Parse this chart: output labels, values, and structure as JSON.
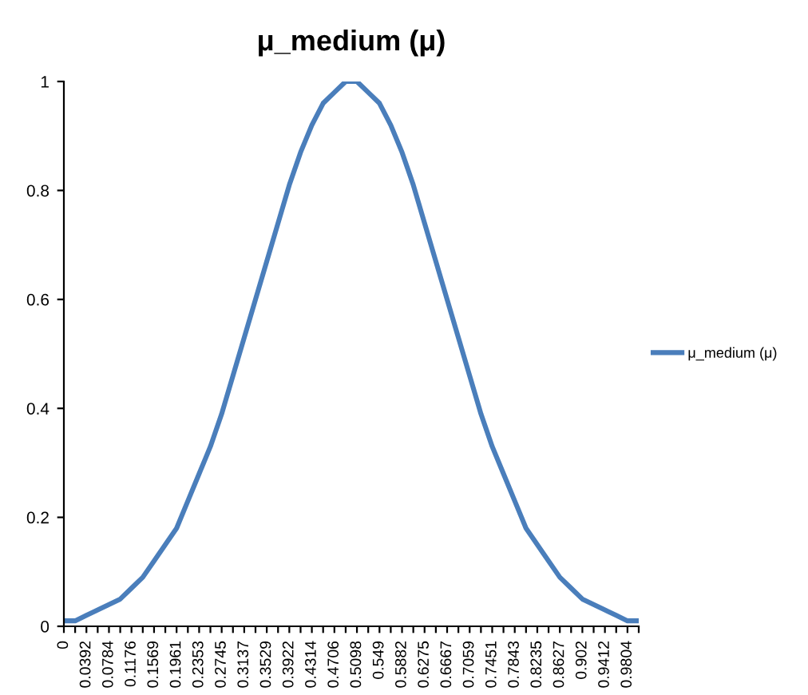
{
  "chart_data": {
    "type": "line",
    "title": "μ_medium (μ)",
    "categories": [
      "0",
      null,
      "0.0392",
      null,
      "0.0784",
      null,
      "0.1176",
      null,
      "0.1569",
      null,
      "0.1961",
      null,
      "0.2353",
      null,
      "0.2745",
      null,
      "0.3137",
      null,
      "0.3529",
      null,
      "0.3922",
      null,
      "0.4314",
      null,
      "0.4706",
      null,
      "0.5098",
      null,
      "0.549",
      null,
      "0.5882",
      null,
      "0.6275",
      null,
      "0.6667",
      null,
      "0.7059",
      null,
      "0.7451",
      null,
      "0.7843",
      null,
      "0.8235",
      null,
      "0.8627",
      null,
      "0.902",
      null,
      "0.9412",
      null,
      "0.9804",
      null
    ],
    "series": [
      {
        "name": "μ_medium (μ)",
        "color": "#4a7ebb",
        "values": [
          0.01,
          0.01,
          0.02,
          0.03,
          0.04,
          0.05,
          0.07,
          0.09,
          0.12,
          0.15,
          0.18,
          0.23,
          0.28,
          0.33,
          0.39,
          0.46,
          0.53,
          0.6,
          0.67,
          0.74,
          0.81,
          0.87,
          0.92,
          0.96,
          0.98,
          1.0,
          1.0,
          0.98,
          0.96,
          0.92,
          0.87,
          0.81,
          0.74,
          0.67,
          0.6,
          0.53,
          0.46,
          0.39,
          0.33,
          0.28,
          0.23,
          0.18,
          0.15,
          0.12,
          0.09,
          0.07,
          0.05,
          0.04,
          0.03,
          0.02,
          0.01,
          0.01
        ]
      }
    ],
    "ylim": [
      0,
      1
    ],
    "yticks": [
      0,
      0.2,
      0.4,
      0.6,
      0.8,
      1
    ],
    "grid": false,
    "legend": "right",
    "marker": "none",
    "line_style": "solid"
  }
}
